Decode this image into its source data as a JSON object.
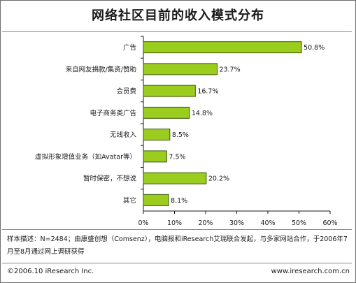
{
  "chart_data": {
    "type": "bar",
    "orientation": "horizontal",
    "title": "网络社区目前的收入模式分布",
    "categories": [
      "广告",
      "来自网友捐款/集资/赞助",
      "会员费",
      "电子商务类广告",
      "无线收入",
      "虚拟形象增值业务（如Avatar等）",
      "暂时保密，不想说",
      "其它"
    ],
    "values": [
      50.8,
      23.7,
      16.7,
      14.8,
      8.5,
      7.5,
      20.2,
      8.1
    ],
    "value_labels": [
      "50.8%",
      "23.7%",
      "16.7%",
      "14.8%",
      "8.5%",
      "7.5%",
      "20.2%",
      "8.1%"
    ],
    "xlim": [
      0,
      60
    ],
    "xticks": [
      0,
      10,
      20,
      30,
      40,
      50,
      60
    ],
    "xtick_labels": [
      "0%",
      "10%",
      "20%",
      "30%",
      "40%",
      "50%",
      "60%"
    ],
    "grid": false,
    "bar_color": "#9acd1e",
    "bar_edge_color": "#3d5a0a"
  },
  "note": "样本描述：N=2484；由康盛创想（Comsenz），电脑报和iResearch艾瑞联合发起，与多家网站合作，于2006年7月至8月通过网上调研获得",
  "copyright": "©2006.10 iResearch Inc.",
  "website": "www.iresearch.com.cn"
}
